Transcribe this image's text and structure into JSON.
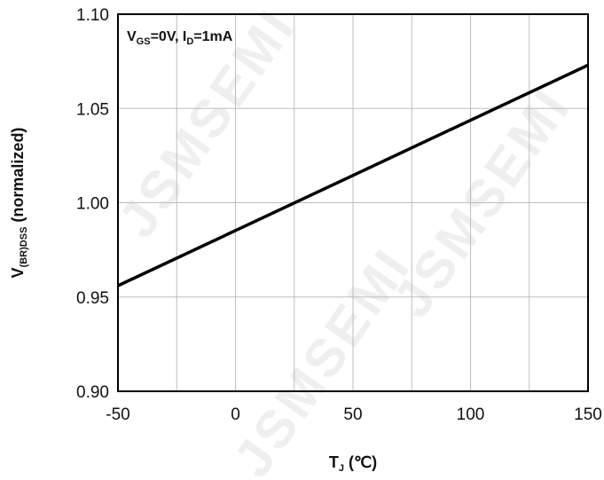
{
  "chart_data": {
    "type": "line",
    "xlabel": {
      "main": "T",
      "sub": "J",
      "suffix": " (℃)"
    },
    "ylabel": {
      "main": "V",
      "sub": "(BR)DSS",
      "suffix": " (normalized)"
    },
    "annotation": {
      "parts": [
        {
          "text": "V",
          "sub": false
        },
        {
          "text": "GS",
          "sub": true
        },
        {
          "text": "=0V, I",
          "sub": false
        },
        {
          "text": "D",
          "sub": true
        },
        {
          "text": "=1mA",
          "sub": false
        }
      ]
    },
    "xlim": [
      -50,
      150
    ],
    "ylim": [
      0.9,
      1.1
    ],
    "x_ticks": [
      -50,
      0,
      50,
      100,
      150
    ],
    "x_tick_labels": [
      "-50",
      "0",
      "50",
      "100",
      "150"
    ],
    "y_ticks": [
      0.9,
      0.95,
      1.0,
      1.05,
      1.1
    ],
    "y_tick_labels": [
      "0.90",
      "0.95",
      "1.00",
      "1.05",
      "1.10"
    ],
    "x_grid_step": 25,
    "y_grid_step": 0.05,
    "grid": true,
    "series": [
      {
        "x": [
          -50,
          150
        ],
        "y": [
          0.956,
          1.073
        ]
      }
    ],
    "watermark": "JSMSEMI",
    "colors": {
      "line": "#000000",
      "grid": "#bdbdbd",
      "frame": "#000000"
    }
  }
}
